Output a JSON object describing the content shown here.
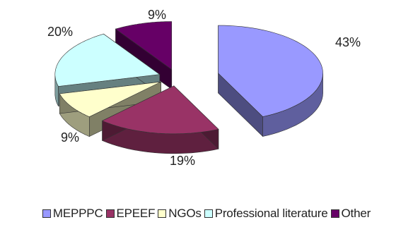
{
  "chart_data": {
    "type": "pie",
    "style": "3d-exploded",
    "labels": [
      "MEPPPC",
      "EPEEF",
      "NGOs",
      "Professional literature",
      "Other"
    ],
    "values": [
      43,
      19,
      9,
      20,
      9
    ],
    "value_labels": [
      "43%",
      "19%",
      "9%",
      "20%",
      "9%"
    ],
    "colors": [
      "#9999ff",
      "#993366",
      "#ffffcc",
      "#ccffff",
      "#660066"
    ],
    "legend_position": "bottom"
  }
}
